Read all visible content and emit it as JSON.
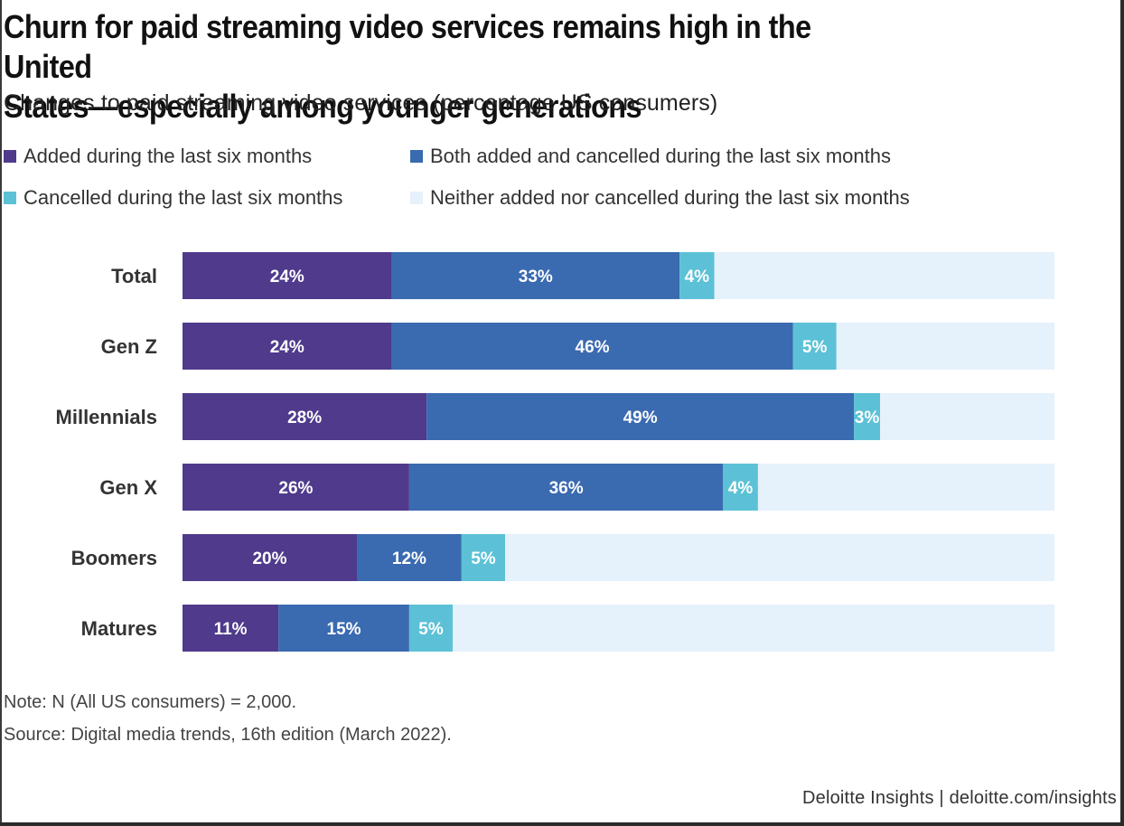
{
  "title_line1": "Churn for paid streaming video services remains high in the United",
  "title_line2": "States—especially among younger generations",
  "subtitle": "Changes to paid streaming video services (percentage US consumers)",
  "legend": [
    {
      "label": "Added during the last six months",
      "color": "#4f3a8c"
    },
    {
      "label": "Both added and cancelled during the last six months",
      "color": "#3a6ab0"
    },
    {
      "label": "Cancelled during the last six months",
      "color": "#5cc1d6"
    },
    {
      "label": "Neither added nor cancelled during the last six months",
      "color": "#e5f1fb"
    }
  ],
  "note": "Note: N (All US consumers) = 2,000.",
  "source": "Source: Digital media trends, 16th edition (March 2022).",
  "credit": "Deloitte Insights | deloitte.com/insights",
  "chart_data": {
    "type": "bar",
    "orientation": "horizontal",
    "stacked": true,
    "categories": [
      "Total",
      "Gen Z",
      "Millennials",
      "Gen X",
      "Boomers",
      "Matures"
    ],
    "series": [
      {
        "name": "Added during the last six months",
        "values": [
          24,
          24,
          28,
          26,
          20,
          11
        ],
        "labels": [
          "24%",
          "24%",
          "28%",
          "26%",
          "20%",
          "11%"
        ],
        "color": "#4f3a8c"
      },
      {
        "name": "Both added and cancelled during the last six months",
        "values": [
          33,
          46,
          49,
          36,
          12,
          15
        ],
        "labels": [
          "33%",
          "46%",
          "49%",
          "36%",
          "12%",
          "15%"
        ],
        "color": "#3a6ab0"
      },
      {
        "name": "Cancelled during the last six months",
        "values": [
          4,
          5,
          3,
          4,
          5,
          5
        ],
        "labels": [
          "4%",
          "5%",
          "3%",
          "4%",
          "5%",
          "5%"
        ],
        "color": "#5cc1d6"
      },
      {
        "name": "Neither added nor cancelled during the last six months",
        "values": [
          39,
          25,
          20,
          34,
          63,
          69
        ],
        "color": "#e5f1fb"
      }
    ],
    "xlim": [
      0,
      100
    ],
    "grid": false,
    "legend_position": "top"
  }
}
